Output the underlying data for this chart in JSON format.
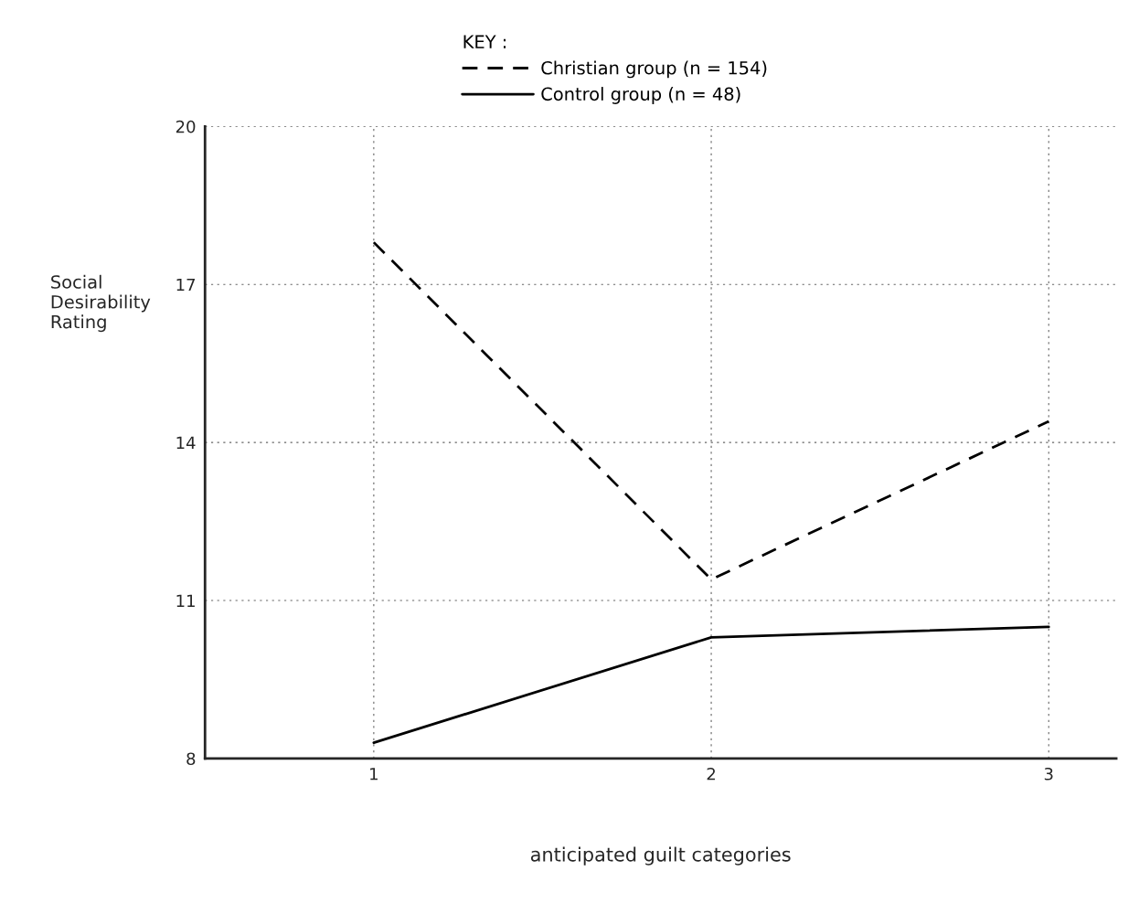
{
  "chart_data": {
    "type": "line",
    "xlabel": "anticipated guilt categories",
    "ylabel": "Social\nDesirability\nRating",
    "legend_title": "KEY :",
    "x": [
      1,
      2,
      3
    ],
    "series": [
      {
        "name": "Christian group (n = 154)",
        "color": "#000000",
        "line_style": "dashed",
        "values": [
          17.8,
          11.4,
          14.4
        ]
      },
      {
        "name": "Control group (n = 48)",
        "color": "#000000",
        "line_style": "solid",
        "values": [
          8.3,
          10.3,
          10.5
        ]
      }
    ],
    "xlim": [
      0.5,
      3.2
    ],
    "xticks": [
      1,
      2,
      3
    ],
    "ylim": [
      8,
      20
    ],
    "yticks": [
      8,
      11,
      14,
      17,
      20
    ],
    "grid": true,
    "legend": "top",
    "marker": "none"
  }
}
